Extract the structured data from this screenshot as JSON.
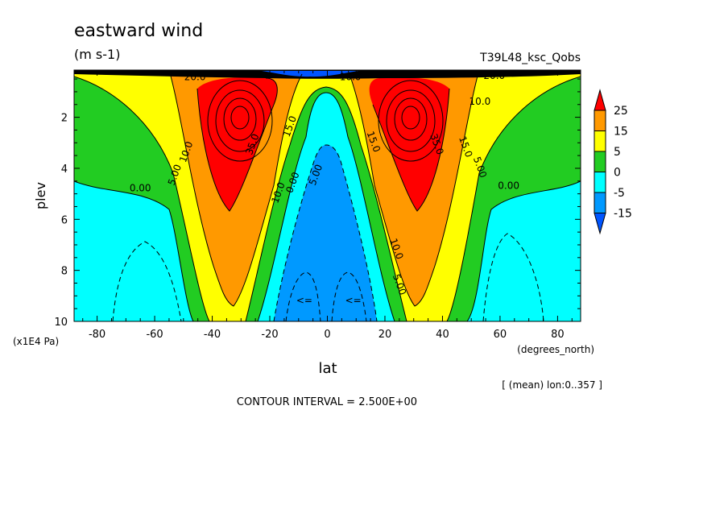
{
  "chart_data": {
    "type": "contour",
    "title": "eastward wind",
    "units": "(m s-1)",
    "experiment": "T39L48_ksc_Qobs",
    "xlabel": "lat",
    "xunit": "(degrees_north)",
    "ylabel": "plev",
    "yunit": "(x1E4 Pa)",
    "xlim": [
      -88,
      88
    ],
    "ylim": [
      10,
      0.15
    ],
    "xticks": [
      -80,
      -60,
      -40,
      -20,
      0,
      20,
      40,
      60,
      80
    ],
    "xtick_labels": [
      "-80",
      "-60",
      "-40",
      "-20",
      "0",
      "20",
      "40",
      "60",
      "80"
    ],
    "yticks": [
      2,
      4,
      6,
      8,
      10
    ],
    "ytick_labels": [
      "2",
      "4",
      "6",
      "8",
      "10"
    ],
    "averaging_note": "[ (mean) lon:0..357 ]",
    "contour_interval_text": "CONTOUR INTERVAL = 2.500E+00",
    "contour_interval": 2.5,
    "jet_maxima": [
      {
        "lat": -30,
        "plev": 2,
        "value": 35
      },
      {
        "lat": 30,
        "plev": 2,
        "value": 35
      }
    ],
    "contour_labels": [
      {
        "text": "20.0",
        "lat": -46,
        "plev": 0.55
      },
      {
        "text": "35.0",
        "lat": -25,
        "plev": 3.1
      },
      {
        "text": "15.0",
        "lat": -12,
        "plev": 2.4
      },
      {
        "text": "10.0",
        "lat": -48,
        "plev": 3.4
      },
      {
        "text": "5.00",
        "lat": -52,
        "plev": 4.3
      },
      {
        "text": "0.00",
        "lat": -65,
        "plev": 4.9
      },
      {
        "text": "10.0",
        "lat": -16,
        "plev": 5.0
      },
      {
        "text": "0.00",
        "lat": -11,
        "plev": 4.6
      },
      {
        "text": "5.00",
        "lat": -3,
        "plev": 4.3
      },
      {
        "text": "10.0",
        "lat": 8,
        "plev": 0.55
      },
      {
        "text": "15.0",
        "lat": 15,
        "plev": 3.0
      },
      {
        "text": "35.0",
        "lat": 37,
        "plev": 3.1
      },
      {
        "text": "10.0",
        "lat": 23,
        "plev": 7.2
      },
      {
        "text": "5.00",
        "lat": 24,
        "plev": 8.6
      },
      {
        "text": "15.0",
        "lat": 47,
        "plev": 3.2
      },
      {
        "text": "10.0",
        "lat": 53,
        "plev": 1.5
      },
      {
        "text": "5.00",
        "lat": 52,
        "plev": 4.0
      },
      {
        "text": "0.00",
        "lat": 63,
        "plev": 4.8
      },
      {
        "text": "20.0",
        "lat": 58,
        "plev": 0.5
      },
      {
        "text": "<=",
        "lat": -8,
        "plev": 9.3
      },
      {
        "text": "<=",
        "lat": 9,
        "plev": 9.3
      }
    ],
    "colorbar": {
      "levels": [
        "25",
        "15",
        "5",
        "0",
        "-5",
        "-15"
      ],
      "colors": [
        "#ff0000",
        "#ff9900",
        "#ffff00",
        "#22cc22",
        "#00ffff",
        "#0099ff",
        "#0055ff"
      ]
    }
  }
}
